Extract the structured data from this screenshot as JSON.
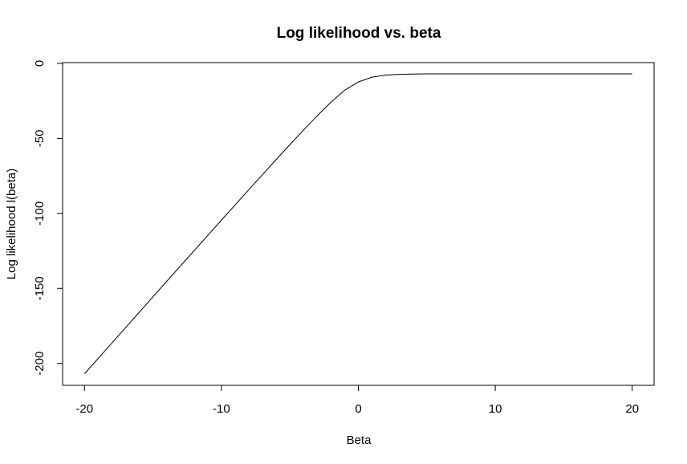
{
  "chart_data": {
    "type": "line",
    "title": "Log likelihood vs. beta",
    "xlabel": "Beta",
    "ylabel": "Log likelihood l(beta)",
    "xlim": [
      -21.6,
      21.6
    ],
    "ylim": [
      -214.6,
      0.5
    ],
    "xticks": [
      -20,
      -10,
      0,
      10,
      20
    ],
    "yticks": [
      0,
      -50,
      -100,
      -150,
      -200
    ],
    "xtick_labels": [
      "-20",
      "-10",
      "0",
      "10",
      "20"
    ],
    "ytick_labels": [
      "0",
      "-50",
      "-100",
      "-150",
      "-200"
    ],
    "grid": false,
    "series": [
      {
        "color": "#000000",
        "x": [
          -20,
          -18,
          -16,
          -14,
          -12,
          -10,
          -8,
          -6,
          -5,
          -4,
          -3,
          -2,
          -1,
          0,
          1,
          2,
          3,
          4,
          5,
          6,
          8,
          10,
          12,
          14,
          16,
          18,
          20
        ],
        "y": [
          -206.9,
          -186.4,
          -165.9,
          -145.3,
          -124.9,
          -104.5,
          -84.2,
          -64.1,
          -54.2,
          -44.4,
          -34.9,
          -25.9,
          -17.9,
          -12.4,
          -9.2,
          -7.8,
          -7.3,
          -7.1,
          -7.0,
          -7.0,
          -7.0,
          -7.0,
          -7.0,
          -7.0,
          -7.0,
          -7.0,
          -7.0
        ]
      }
    ]
  }
}
